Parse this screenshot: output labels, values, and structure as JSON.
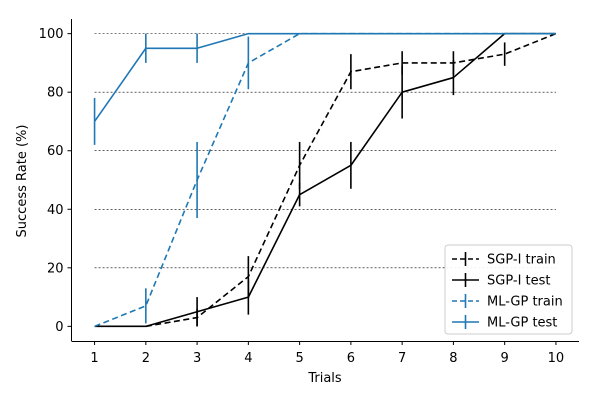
{
  "chart_data": {
    "type": "line",
    "title": "",
    "xlabel": "Trials",
    "ylabel": "Success Rate (%)",
    "x": [
      1,
      2,
      3,
      4,
      5,
      6,
      7,
      8,
      9,
      10
    ],
    "xlim": [
      0.55,
      10.45
    ],
    "ylim": [
      -5,
      105
    ],
    "xticks": [
      1,
      2,
      3,
      4,
      5,
      6,
      7,
      8,
      9,
      10
    ],
    "yticks": [
      0,
      20,
      40,
      60,
      80,
      100
    ],
    "grid": "horizontal dashed at 20, 40, 60, 80, 100",
    "legend_position": "lower-right",
    "series": [
      {
        "name": "SGP-I train",
        "color": "#000000",
        "linestyle": "dashed",
        "x": [
          2,
          3,
          4,
          5,
          6,
          7,
          8,
          9,
          10
        ],
        "values": [
          0,
          3,
          17,
          55,
          87,
          90,
          90,
          93,
          100
        ],
        "errors": [
          0,
          3,
          7,
          8,
          6,
          4,
          4,
          4,
          0
        ]
      },
      {
        "name": "SGP-I test",
        "color": "#000000",
        "linestyle": "solid",
        "x": [
          1,
          2,
          3,
          4,
          5,
          6,
          7,
          8,
          9,
          10
        ],
        "values": [
          0,
          0,
          5,
          10,
          45,
          55,
          80,
          85,
          100,
          100
        ],
        "errors": [
          0,
          0,
          5,
          6,
          4,
          8,
          9,
          6,
          0,
          0
        ]
      },
      {
        "name": "ML-GP train",
        "color": "#1f77b4",
        "linestyle": "dashed",
        "x": [
          1,
          2,
          3,
          4,
          5,
          6,
          7,
          8,
          9,
          10
        ],
        "values": [
          0,
          7,
          50,
          90,
          100,
          100,
          100,
          100,
          100,
          100
        ],
        "errors": [
          0,
          6,
          13,
          9,
          0,
          0,
          0,
          0,
          0,
          0
        ]
      },
      {
        "name": "ML-GP test",
        "color": "#1f77b4",
        "linestyle": "solid",
        "x": [
          1,
          2,
          3,
          4,
          5,
          6,
          7,
          8,
          9,
          10
        ],
        "values": [
          70,
          95,
          95,
          100,
          100,
          100,
          100,
          100,
          100,
          100
        ],
        "errors": [
          8,
          5,
          5,
          0,
          0,
          0,
          0,
          0,
          0,
          0
        ]
      }
    ]
  }
}
